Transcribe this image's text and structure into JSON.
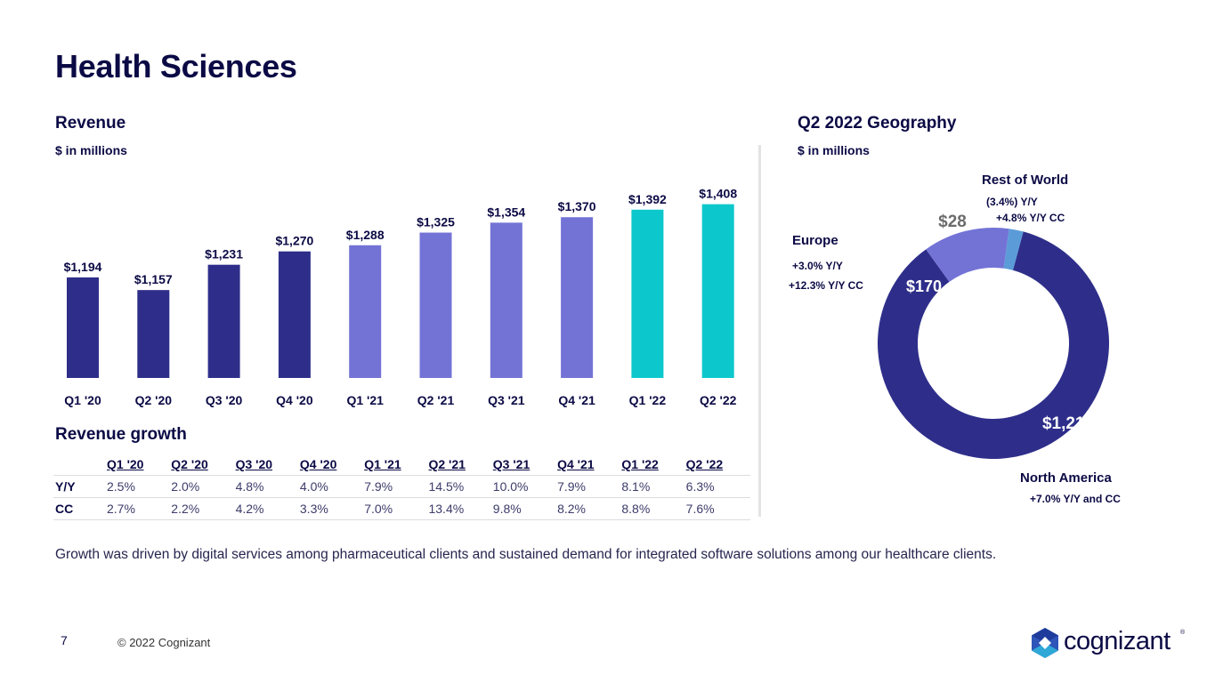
{
  "page": {
    "title": "Health Sciences",
    "page_number": "7",
    "copyright": "© 2022 Cognizant",
    "logo_text": "cognizant",
    "logo_reg": "®",
    "commentary": "Growth was driven by digital services among pharmaceutical clients and sustained demand for integrated software solutions among our healthcare clients."
  },
  "revenue": {
    "title": "Revenue",
    "units": "$ in millions"
  },
  "geography": {
    "title": "Q2 2022 Geography",
    "units": "$ in millions",
    "regions": [
      {
        "name": "North America",
        "value_label": "$1,210",
        "notes": [
          "+7.0%  Y/Y and CC"
        ]
      },
      {
        "name": "Europe",
        "value_label": "$170",
        "notes": [
          "+3.0%  Y/Y",
          "+12.3%  Y/Y CC"
        ]
      },
      {
        "name": "Rest of World",
        "value_label": "$28",
        "notes": [
          "(3.4%) Y/Y",
          "+4.8%  Y/Y CC"
        ]
      }
    ]
  },
  "growth": {
    "title": "Revenue growth",
    "columns": [
      "Q1 '20",
      "Q2 '20",
      "Q3 '20",
      "Q4 '20",
      "Q1 '21",
      "Q2 '21",
      "Q3 '21",
      "Q4 '21",
      "Q1 '22",
      "Q2 '22"
    ],
    "rows": [
      {
        "label": "Y/Y",
        "values": [
          "2.5%",
          "2.0%",
          "4.8%",
          "4.0%",
          "7.9%",
          "14.5%",
          "10.0%",
          "7.9%",
          "8.1%",
          "6.3%"
        ]
      },
      {
        "label": "CC",
        "values": [
          "2.7%",
          "2.2%",
          "4.2%",
          "3.3%",
          "7.0%",
          "13.4%",
          "9.8%",
          "8.2%",
          "8.8%",
          "7.6%"
        ]
      }
    ]
  },
  "colors": {
    "navy": "#2e2e8a",
    "lavender": "#7373d6",
    "teal": "#0cc8cc",
    "light_blue": "#5b9bd8",
    "text": "#0b0a45",
    "muted_label": "#6b6b6b"
  },
  "chart_data": [
    {
      "type": "bar",
      "title": "Revenue",
      "ylabel": "$ in millions",
      "xlabel": "",
      "categories": [
        "Q1 '20",
        "Q2 '20",
        "Q3 '20",
        "Q4 '20",
        "Q1 '21",
        "Q2 '21",
        "Q3 '21",
        "Q4 '21",
        "Q1 '22",
        "Q2 '22"
      ],
      "values": [
        1194,
        1157,
        1231,
        1270,
        1288,
        1325,
        1354,
        1370,
        1392,
        1408
      ],
      "data_labels": [
        "$1,194",
        "$1,157",
        "$1,231",
        "$1,270",
        "$1,288",
        "$1,325",
        "$1,354",
        "$1,370",
        "$1,392",
        "$1,408"
      ],
      "bar_color_groups": [
        "navy",
        "navy",
        "navy",
        "navy",
        "lavender",
        "lavender",
        "lavender",
        "lavender",
        "teal",
        "teal"
      ],
      "ylim": [
        900,
        1420
      ],
      "grid": false,
      "legend": "none"
    },
    {
      "type": "pie",
      "variant": "donut",
      "title": "Q2 2022 Geography",
      "units": "$ in millions",
      "labels": [
        "North America",
        "Europe",
        "Rest of World"
      ],
      "values": [
        1210,
        170,
        28
      ],
      "data_labels": [
        "$1,210",
        "$170",
        "$28"
      ],
      "colors": [
        "navy",
        "lavender",
        "light_blue"
      ],
      "legend": "none"
    }
  ]
}
